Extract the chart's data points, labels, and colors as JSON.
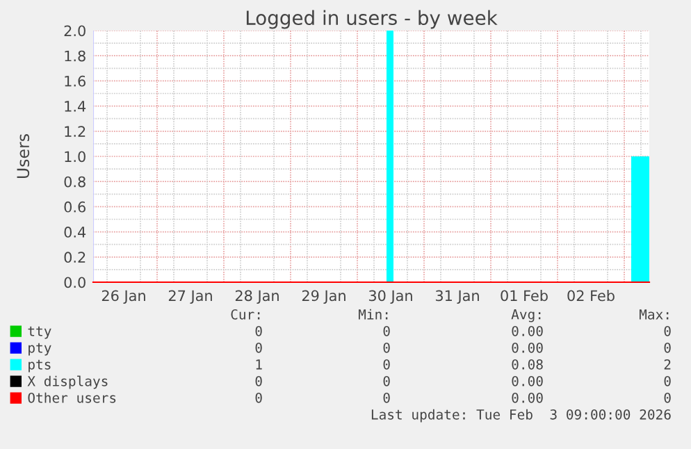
{
  "chart_data": {
    "type": "area",
    "title": "Logged in users - by week",
    "ylabel": "Users",
    "xlim": [
      "2026-01-26T01:00",
      "2026-02-03T09:00"
    ],
    "xticks": [
      {
        "value": "2026-01-26T12:00",
        "label": "26 Jan"
      },
      {
        "value": "2026-01-27T12:00",
        "label": "27 Jan"
      },
      {
        "value": "2026-01-28T12:00",
        "label": "28 Jan"
      },
      {
        "value": "2026-01-29T12:00",
        "label": "29 Jan"
      },
      {
        "value": "2026-01-30T12:00",
        "label": "30 Jan"
      },
      {
        "value": "2026-01-31T12:00",
        "label": "31 Jan"
      },
      {
        "value": "2026-02-01T12:00",
        "label": "01 Feb"
      },
      {
        "value": "2026-02-02T12:00",
        "label": "02 Feb"
      },
      {
        "value": "2026-01-27",
        "label": null
      },
      {
        "value": "2026-01-28",
        "label": null
      },
      {
        "value": "2026-01-29",
        "label": null
      },
      {
        "value": "2026-01-30",
        "label": null
      },
      {
        "value": "2026-01-31",
        "label": null
      },
      {
        "value": "2026-02-01",
        "label": null
      },
      {
        "value": "2026-02-02",
        "label": null
      },
      {
        "value": "2026-02-03",
        "label": null
      }
    ],
    "ylim": [
      0,
      2.0
    ],
    "yticks": [
      {
        "value": 0,
        "label": "0.0"
      },
      {
        "value": 0.2,
        "label": "0.2"
      },
      {
        "value": 0.4,
        "label": "0.4"
      },
      {
        "value": 0.6,
        "label": "0.6"
      },
      {
        "value": 0.8,
        "label": "0.8"
      },
      {
        "value": 1.0,
        "label": "1.0"
      },
      {
        "value": 1.2,
        "label": "1.2"
      },
      {
        "value": 1.4,
        "label": "1.4"
      },
      {
        "value": 1.6,
        "label": "1.6"
      },
      {
        "value": 1.8,
        "label": "1.8"
      },
      {
        "value": 2.0,
        "label": "2.0"
      }
    ],
    "grid": true,
    "legend": "bottom",
    "series": [
      {
        "name": "tty",
        "type": "line",
        "color": "#00cc00"
      },
      {
        "name": "pty",
        "type": "line",
        "color": "#0000ff"
      },
      {
        "name": "pts",
        "color": "#00ffff",
        "x": [
          "2026-01-26T01:00",
          "2026-01-30T10:30",
          "2026-01-30T10:30",
          "2026-01-30T13:00",
          "2026-01-30T13:00",
          "2026-02-03T02:30",
          "2026-02-03T02:30",
          "2026-02-03T09:00"
        ],
        "values": [
          0,
          0,
          2,
          2,
          0,
          0,
          1,
          1
        ]
      },
      {
        "name": "X displays",
        "type": "line",
        "color": "#000000"
      },
      {
        "name": "Other users",
        "type": "line",
        "color": "#ff0000",
        "x": [
          "2026-01-26T01:00",
          "2026-02-03T09:00"
        ],
        "values": [
          0,
          0
        ]
      }
    ],
    "annotations": [
      "Cur:",
      "Min:",
      "Avg:",
      "Max:",
      "0",
      "0",
      "0.00",
      "0",
      "0",
      "0",
      "0.00",
      "0",
      "1",
      "0",
      "0.08",
      "2",
      "0",
      "0",
      "0.00",
      "0",
      "0",
      "0",
      "0.00",
      "0",
      "Last update: Tue Feb  3 09:00:00 2026"
    ]
  }
}
